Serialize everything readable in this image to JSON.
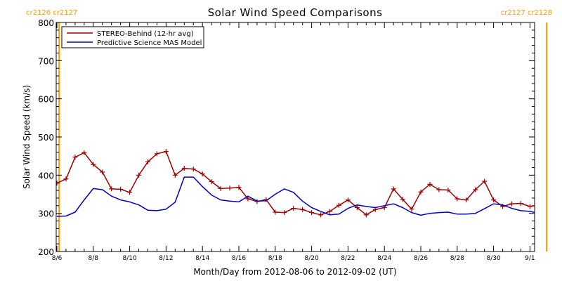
{
  "chart_data": {
    "type": "line",
    "title": "Solar Wind Speed Comparisons",
    "xlabel": "Month/Day from 2012-08-06 to 2012-09-02 (UT)",
    "ylabel": "Solar Wind Speed (km/s)",
    "x_start_date": "2012-08-06",
    "x_end_date": "2012-09-02",
    "ylim": [
      200,
      800
    ],
    "yticks": [
      200,
      300,
      400,
      500,
      600,
      700,
      800
    ],
    "xtick_labels": [
      "8/6",
      "8/8",
      "8/10",
      "8/12",
      "8/14",
      "8/16",
      "8/18",
      "8/20",
      "8/22",
      "8/24",
      "8/26",
      "8/28",
      "8/30",
      "9/1"
    ],
    "legend_position": "top-left",
    "grid": false,
    "carrington_labels": {
      "left": "cr2126 cr2127",
      "right": "cr2127 cr2128",
      "boundary_dates": [
        "2012-08-06T03:00",
        "2012-09-01T22:00"
      ],
      "color": "#ff9a00"
    },
    "series": [
      {
        "name": "STEREO-Behind (12-hr avg)",
        "color": "#a00000",
        "marker": "plus",
        "x": [
          "2012-08-06T00:00",
          "2012-08-06T12:00",
          "2012-08-07T00:00",
          "2012-08-07T12:00",
          "2012-08-08T00:00",
          "2012-08-08T12:00",
          "2012-08-09T00:00",
          "2012-08-09T12:00",
          "2012-08-10T00:00",
          "2012-08-10T12:00",
          "2012-08-11T00:00",
          "2012-08-11T12:00",
          "2012-08-12T00:00",
          "2012-08-12T12:00",
          "2012-08-13T00:00",
          "2012-08-13T12:00",
          "2012-08-14T00:00",
          "2012-08-14T12:00",
          "2012-08-15T00:00",
          "2012-08-15T12:00",
          "2012-08-16T00:00",
          "2012-08-16T12:00",
          "2012-08-17T00:00",
          "2012-08-17T12:00",
          "2012-08-18T00:00",
          "2012-08-18T12:00",
          "2012-08-19T00:00",
          "2012-08-19T12:00",
          "2012-08-20T00:00",
          "2012-08-20T12:00",
          "2012-08-21T00:00",
          "2012-08-21T12:00",
          "2012-08-22T00:00",
          "2012-08-22T12:00",
          "2012-08-23T00:00",
          "2012-08-23T12:00",
          "2012-08-24T00:00",
          "2012-08-24T12:00",
          "2012-08-25T00:00",
          "2012-08-25T12:00",
          "2012-08-26T00:00",
          "2012-08-26T12:00",
          "2012-08-27T00:00",
          "2012-08-27T12:00",
          "2012-08-28T00:00",
          "2012-08-28T12:00",
          "2012-08-29T00:00",
          "2012-08-29T12:00",
          "2012-08-30T00:00",
          "2012-08-30T12:00",
          "2012-08-31T00:00",
          "2012-08-31T12:00",
          "2012-09-01T00:00",
          "2012-09-01T12:00",
          "2012-09-02T00:00",
          "2012-09-02T06:00"
        ],
        "y": [
          379,
          390,
          447,
          459,
          428,
          408,
          364,
          363,
          355,
          400,
          435,
          456,
          462,
          400,
          418,
          416,
          403,
          383,
          365,
          366,
          368,
          338,
          331,
          336,
          303,
          302,
          313,
          310,
          302,
          296,
          305,
          321,
          335,
          315,
          296,
          310,
          315,
          364,
          337,
          311,
          356,
          376,
          362,
          361,
          338,
          335,
          362,
          384,
          335,
          318,
          325,
          326,
          318,
          322,
          323,
          309
        ]
      },
      {
        "name": "Predictive Science MAS Model",
        "color": "#0000c0",
        "marker": "none",
        "x": [
          "2012-08-06T00:00",
          "2012-08-06T12:00",
          "2012-08-07T00:00",
          "2012-08-07T12:00",
          "2012-08-08T00:00",
          "2012-08-08T12:00",
          "2012-08-09T00:00",
          "2012-08-09T12:00",
          "2012-08-10T00:00",
          "2012-08-10T12:00",
          "2012-08-11T00:00",
          "2012-08-11T12:00",
          "2012-08-12T00:00",
          "2012-08-12T12:00",
          "2012-08-13T00:00",
          "2012-08-13T12:00",
          "2012-08-14T00:00",
          "2012-08-14T12:00",
          "2012-08-15T00:00",
          "2012-08-15T12:00",
          "2012-08-16T00:00",
          "2012-08-16T12:00",
          "2012-08-17T00:00",
          "2012-08-17T12:00",
          "2012-08-18T00:00",
          "2012-08-18T12:00",
          "2012-08-19T00:00",
          "2012-08-19T12:00",
          "2012-08-20T00:00",
          "2012-08-20T12:00",
          "2012-08-21T00:00",
          "2012-08-21T12:00",
          "2012-08-22T00:00",
          "2012-08-22T12:00",
          "2012-08-23T00:00",
          "2012-08-23T12:00",
          "2012-08-24T00:00",
          "2012-08-24T12:00",
          "2012-08-25T00:00",
          "2012-08-25T12:00",
          "2012-08-26T00:00",
          "2012-08-26T12:00",
          "2012-08-27T00:00",
          "2012-08-27T12:00",
          "2012-08-28T00:00",
          "2012-08-28T12:00",
          "2012-08-29T00:00",
          "2012-08-29T12:00",
          "2012-08-30T00:00",
          "2012-08-30T12:00",
          "2012-08-31T00:00",
          "2012-08-31T12:00",
          "2012-09-01T00:00",
          "2012-09-01T12:00",
          "2012-09-02T00:00"
        ],
        "y": [
          292,
          293,
          303,
          335,
          365,
          362,
          345,
          335,
          330,
          322,
          308,
          307,
          311,
          329,
          395,
          395,
          370,
          348,
          335,
          332,
          330,
          345,
          332,
          333,
          350,
          364,
          355,
          332,
          315,
          305,
          296,
          298,
          313,
          322,
          318,
          315,
          320,
          325,
          315,
          302,
          295,
          300,
          302,
          303,
          298,
          298,
          300,
          312,
          325,
          322,
          313,
          307,
          305,
          300,
          292
        ]
      }
    ]
  }
}
